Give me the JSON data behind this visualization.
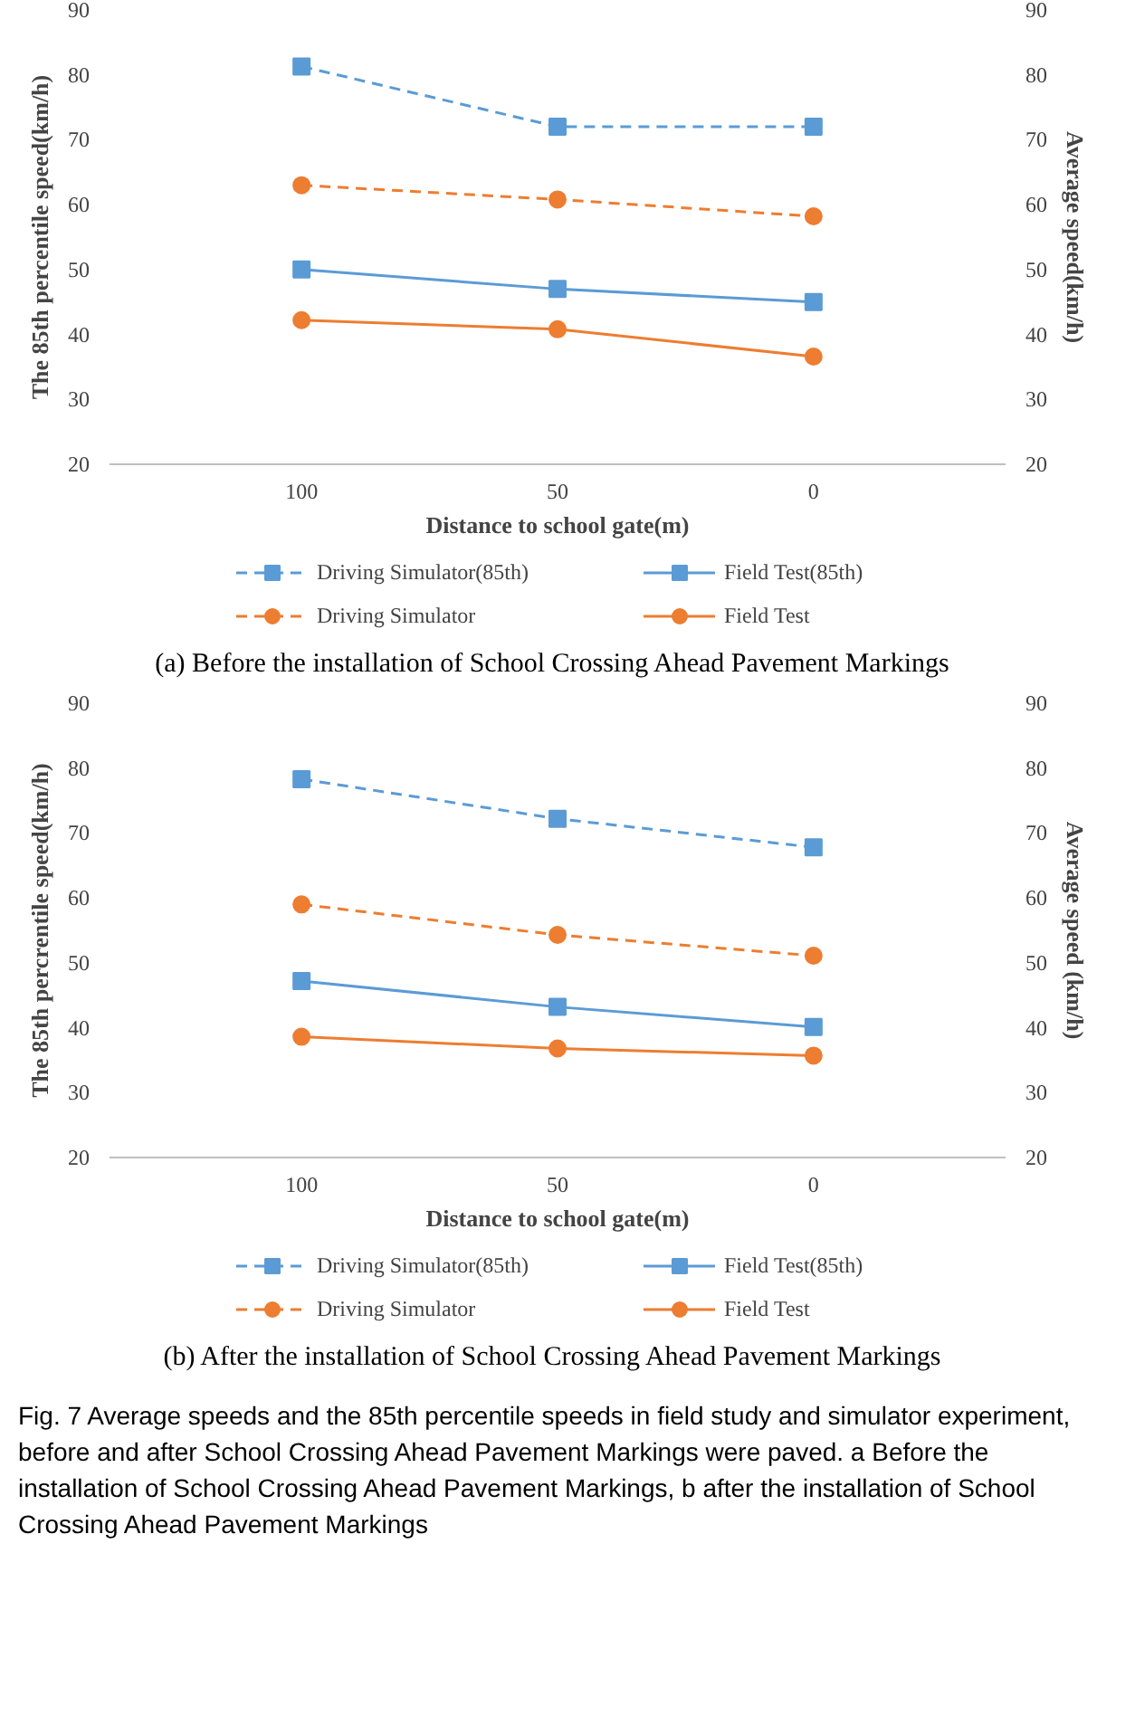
{
  "chart_data": [
    {
      "type": "line",
      "ylabel": "The 85th percentile speed(km/h)",
      "y2label": "Average speed(km/h)",
      "xlabel": "Distance to school gate(m)",
      "categories": [
        "100",
        "50",
        "0"
      ],
      "ylim": [
        20,
        90
      ],
      "yticks": [
        20,
        30,
        40,
        50,
        60,
        70,
        80,
        90
      ],
      "y2lim": [
        20,
        90
      ],
      "y2ticks": [
        20,
        30,
        40,
        50,
        60,
        70,
        80,
        90
      ],
      "grid": false,
      "legend": "bottom",
      "annotations": [
        "(a) Before the installation of School Crossing Ahead Pavement Markings"
      ],
      "series": [
        {
          "name": "Driving Simulator(85th)",
          "color": "#5b9bd5",
          "values": [
            81.3,
            72,
            72
          ],
          "line_style": "dashed",
          "marker": "square"
        },
        {
          "name": "Field Test(85th)",
          "color": "#5b9bd5",
          "values": [
            50,
            47,
            45
          ],
          "line_style": "solid",
          "marker": "square"
        },
        {
          "name": "Driving Simulator",
          "color": "#ed7d31",
          "values": [
            63,
            60.8,
            58.2
          ],
          "line_style": "dashed",
          "marker": "circle"
        },
        {
          "name": "Field Test",
          "color": "#ed7d31",
          "values": [
            42.2,
            40.8,
            36.6
          ],
          "line_style": "solid",
          "marker": "circle"
        }
      ]
    },
    {
      "type": "line",
      "ylabel": "The 85th percrentile speed(km/h)",
      "y2label": "Average speed (km/h)",
      "xlabel": "Distance to school gate(m)",
      "categories": [
        "100",
        "50",
        "0"
      ],
      "ylim": [
        20,
        90
      ],
      "yticks": [
        20,
        30,
        40,
        50,
        60,
        70,
        80,
        90
      ],
      "y2lim": [
        20,
        90
      ],
      "y2ticks": [
        20,
        30,
        40,
        50,
        60,
        70,
        80,
        90
      ],
      "grid": false,
      "legend": "bottom",
      "annotations": [
        "(b)  After the installation of School Crossing Ahead Pavement Markings",
        "Fig. 7  Average speeds and the 85th percentile speeds in field study and simulator experiment, before and after School Crossing Ahead Pavement Markings were paved. a Before the installation of School Crossing Ahead Pavement Markings, b after the installation of School Crossing Ahead Pavement Markings"
      ],
      "series": [
        {
          "name": "Driving Simulator(85th)",
          "color": "#5b9bd5",
          "values": [
            78.3,
            72.2,
            67.8
          ],
          "line_style": "dashed",
          "marker": "square"
        },
        {
          "name": "Field Test(85th)",
          "color": "#5b9bd5",
          "values": [
            47.2,
            43.2,
            40.1
          ],
          "line_style": "solid",
          "marker": "square"
        },
        {
          "name": "Driving Simulator",
          "color": "#ed7d31",
          "values": [
            59,
            54.3,
            51.1
          ],
          "line_style": "dashed",
          "marker": "circle"
        },
        {
          "name": "Field Test",
          "color": "#ed7d31",
          "values": [
            38.6,
            36.8,
            35.7
          ],
          "line_style": "solid",
          "marker": "circle"
        }
      ]
    }
  ]
}
